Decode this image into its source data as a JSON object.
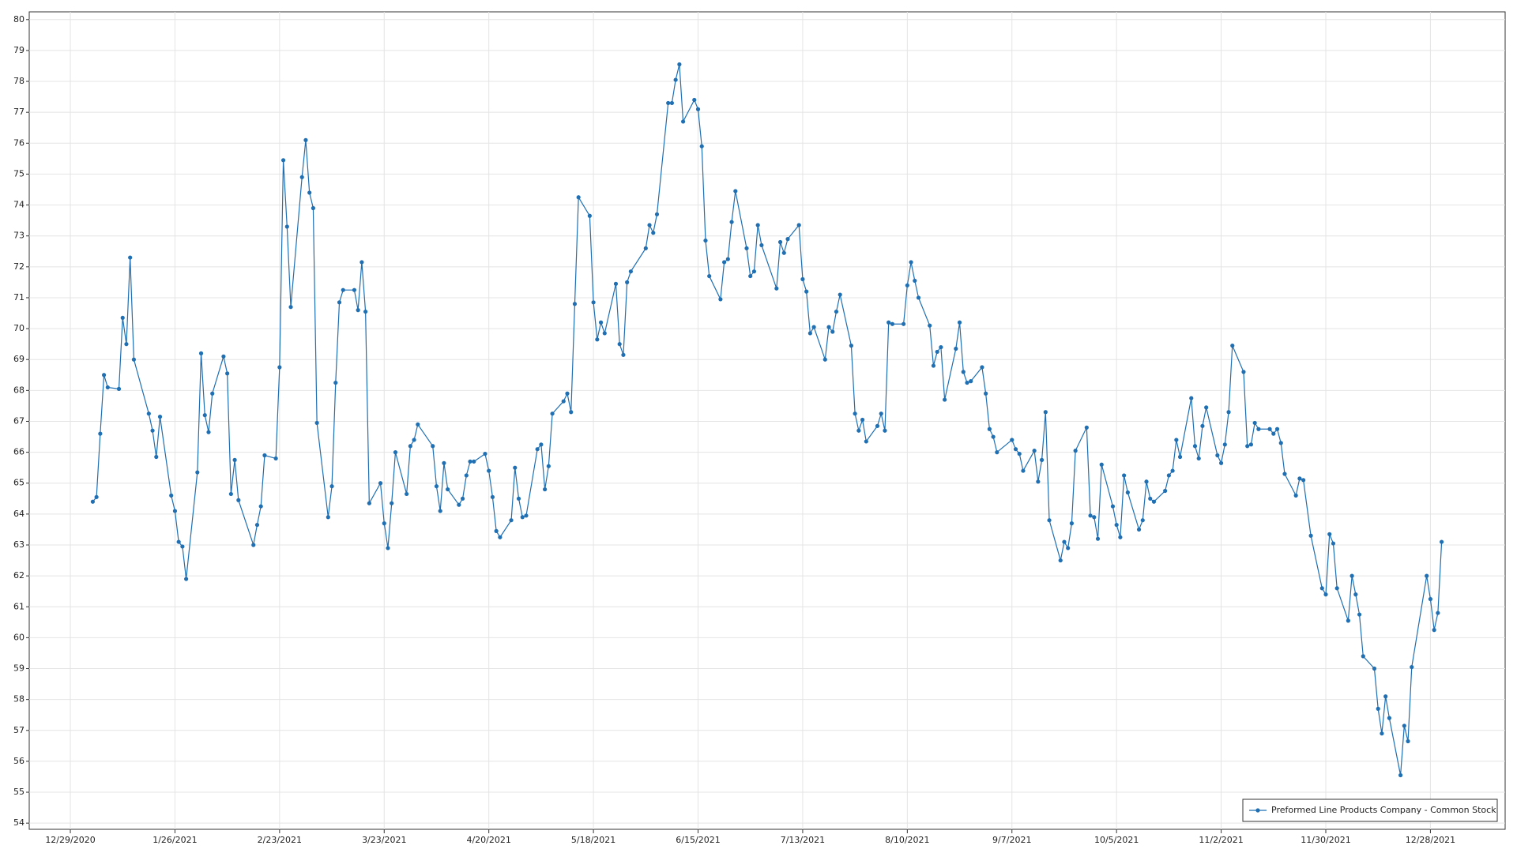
{
  "chart_data": {
    "type": "line",
    "x": [
      "1/4/2021",
      "1/5/2021",
      "1/6/2021",
      "1/7/2021",
      "1/8/2021",
      "1/11/2021",
      "1/12/2021",
      "1/13/2021",
      "1/14/2021",
      "1/15/2021",
      "1/19/2021",
      "1/20/2021",
      "1/21/2021",
      "1/22/2021",
      "1/25/2021",
      "1/26/2021",
      "1/27/2021",
      "1/28/2021",
      "1/29/2021",
      "2/1/2021",
      "2/2/2021",
      "2/3/2021",
      "2/4/2021",
      "2/5/2021",
      "2/8/2021",
      "2/9/2021",
      "2/10/2021",
      "2/11/2021",
      "2/12/2021",
      "2/16/2021",
      "2/17/2021",
      "2/18/2021",
      "2/19/2021",
      "2/22/2021",
      "2/23/2021",
      "2/24/2021",
      "2/25/2021",
      "2/26/2021",
      "3/1/2021",
      "3/2/2021",
      "3/3/2021",
      "3/4/2021",
      "3/5/2021",
      "3/8/2021",
      "3/9/2021",
      "3/10/2021",
      "3/11/2021",
      "3/12/2021",
      "3/15/2021",
      "3/16/2021",
      "3/17/2021",
      "3/18/2021",
      "3/19/2021",
      "3/22/2021",
      "3/23/2021",
      "3/24/2021",
      "3/25/2021",
      "3/26/2021",
      "3/29/2021",
      "3/30/2021",
      "3/31/2021",
      "4/1/2021",
      "4/5/2021",
      "4/6/2021",
      "4/7/2021",
      "4/8/2021",
      "4/9/2021",
      "4/12/2021",
      "4/13/2021",
      "4/14/2021",
      "4/15/2021",
      "4/16/2021",
      "4/19/2021",
      "4/20/2021",
      "4/21/2021",
      "4/22/2021",
      "4/23/2021",
      "4/26/2021",
      "4/27/2021",
      "4/28/2021",
      "4/29/2021",
      "4/30/2021",
      "5/3/2021",
      "5/4/2021",
      "5/5/2021",
      "5/6/2021",
      "5/7/2021",
      "5/10/2021",
      "5/11/2021",
      "5/12/2021",
      "5/13/2021",
      "5/14/2021",
      "5/17/2021",
      "5/18/2021",
      "5/19/2021",
      "5/20/2021",
      "5/21/2021",
      "5/24/2021",
      "5/25/2021",
      "5/26/2021",
      "5/27/2021",
      "5/28/2021",
      "6/1/2021",
      "6/2/2021",
      "6/3/2021",
      "6/4/2021",
      "6/7/2021",
      "6/8/2021",
      "6/9/2021",
      "6/10/2021",
      "6/11/2021",
      "6/14/2021",
      "6/15/2021",
      "6/16/2021",
      "6/17/2021",
      "6/18/2021",
      "6/21/2021",
      "6/22/2021",
      "6/23/2021",
      "6/24/2021",
      "6/25/2021",
      "6/28/2021",
      "6/29/2021",
      "6/30/2021",
      "7/1/2021",
      "7/2/2021",
      "7/6/2021",
      "7/7/2021",
      "7/8/2021",
      "7/9/2021",
      "7/12/2021",
      "7/13/2021",
      "7/14/2021",
      "7/15/2021",
      "7/16/2021",
      "7/19/2021",
      "7/20/2021",
      "7/21/2021",
      "7/22/2021",
      "7/23/2021",
      "7/26/2021",
      "7/27/2021",
      "7/28/2021",
      "7/29/2021",
      "7/30/2021",
      "8/2/2021",
      "8/3/2021",
      "8/4/2021",
      "8/5/2021",
      "8/6/2021",
      "8/9/2021",
      "8/10/2021",
      "8/11/2021",
      "8/12/2021",
      "8/13/2021",
      "8/16/2021",
      "8/17/2021",
      "8/18/2021",
      "8/19/2021",
      "8/20/2021",
      "8/23/2021",
      "8/24/2021",
      "8/25/2021",
      "8/26/2021",
      "8/27/2021",
      "8/30/2021",
      "8/31/2021",
      "9/1/2021",
      "9/2/2021",
      "9/3/2021",
      "9/7/2021",
      "9/8/2021",
      "9/9/2021",
      "9/10/2021",
      "9/13/2021",
      "9/14/2021",
      "9/15/2021",
      "9/16/2021",
      "9/17/2021",
      "9/20/2021",
      "9/21/2021",
      "9/22/2021",
      "9/23/2021",
      "9/24/2021",
      "9/27/2021",
      "9/28/2021",
      "9/29/2021",
      "9/30/2021",
      "10/1/2021",
      "10/4/2021",
      "10/5/2021",
      "10/6/2021",
      "10/7/2021",
      "10/8/2021",
      "10/11/2021",
      "10/12/2021",
      "10/13/2021",
      "10/14/2021",
      "10/15/2021",
      "10/18/2021",
      "10/19/2021",
      "10/20/2021",
      "10/21/2021",
      "10/22/2021",
      "10/25/2021",
      "10/26/2021",
      "10/27/2021",
      "10/28/2021",
      "10/29/2021",
      "11/1/2021",
      "11/2/2021",
      "11/3/2021",
      "11/4/2021",
      "11/5/2021",
      "11/8/2021",
      "11/9/2021",
      "11/10/2021",
      "11/11/2021",
      "11/12/2021",
      "11/15/2021",
      "11/16/2021",
      "11/17/2021",
      "11/18/2021",
      "11/19/2021",
      "11/22/2021",
      "11/23/2021",
      "11/24/2021",
      "11/26/2021",
      "11/29/2021",
      "11/30/2021",
      "12/1/2021",
      "12/2/2021",
      "12/3/2021",
      "12/6/2021",
      "12/7/2021",
      "12/8/2021",
      "12/9/2021",
      "12/10/2021",
      "12/13/2021",
      "12/14/2021",
      "12/15/2021",
      "12/16/2021",
      "12/17/2021",
      "12/20/2021",
      "12/21/2021",
      "12/22/2021",
      "12/23/2021",
      "12/27/2021",
      "12/28/2021",
      "12/29/2021",
      "12/30/2021",
      "12/31/2021"
    ],
    "series": [
      {
        "name": "Preformed Line Products Company - Common Stock",
        "color": "#1f6fb2",
        "values": [
          64.4,
          64.55,
          66.6,
          68.5,
          68.1,
          68.05,
          70.35,
          69.5,
          72.3,
          69.0,
          67.25,
          66.7,
          65.85,
          67.15,
          64.6,
          64.1,
          63.1,
          62.95,
          61.9,
          65.35,
          69.2,
          67.2,
          66.65,
          67.9,
          69.1,
          68.55,
          64.65,
          65.75,
          64.45,
          63.0,
          63.65,
          64.25,
          65.9,
          65.8,
          68.75,
          75.45,
          73.3,
          70.7,
          74.9,
          76.1,
          74.4,
          73.9,
          66.95,
          63.9,
          64.9,
          68.25,
          70.85,
          71.25,
          71.25,
          70.6,
          72.15,
          70.55,
          64.35,
          65.0,
          63.7,
          62.9,
          64.35,
          66.0,
          64.65,
          66.2,
          66.4,
          66.9,
          66.2,
          64.9,
          64.1,
          65.65,
          64.8,
          64.3,
          64.5,
          65.25,
          65.7,
          65.7,
          65.95,
          65.4,
          64.55,
          63.45,
          63.25,
          63.8,
          65.5,
          64.5,
          63.9,
          63.95,
          66.1,
          66.25,
          64.8,
          65.55,
          67.25,
          67.65,
          67.9,
          67.3,
          70.8,
          74.25,
          73.65,
          70.85,
          69.65,
          70.2,
          69.85,
          71.45,
          69.5,
          69.15,
          71.5,
          71.85,
          72.6,
          73.35,
          73.1,
          73.7,
          77.3,
          77.3,
          78.05,
          78.55,
          76.7,
          77.4,
          77.1,
          75.9,
          72.85,
          71.7,
          70.95,
          72.15,
          72.25,
          73.45,
          74.45,
          72.6,
          71.7,
          71.85,
          73.35,
          72.7,
          71.3,
          72.8,
          72.45,
          72.9,
          73.35,
          71.6,
          71.2,
          69.85,
          70.05,
          69.0,
          70.05,
          69.9,
          70.55,
          71.1,
          69.45,
          67.25,
          66.7,
          67.05,
          66.35,
          66.85,
          67.25,
          66.7,
          70.2,
          70.15,
          70.15,
          71.4,
          72.15,
          71.55,
          71.0,
          70.1,
          68.8,
          69.25,
          69.4,
          67.7,
          69.35,
          70.2,
          68.6,
          68.25,
          68.3,
          68.75,
          67.9,
          66.75,
          66.5,
          66.0,
          66.4,
          66.1,
          65.95,
          65.4,
          66.05,
          65.05,
          65.75,
          67.3,
          63.8,
          62.5,
          63.1,
          62.9,
          63.7,
          66.05,
          66.8,
          63.95,
          63.9,
          63.2,
          65.6,
          64.25,
          63.65,
          63.25,
          65.25,
          64.7,
          63.5,
          63.8,
          65.05,
          64.5,
          64.4,
          64.75,
          65.25,
          65.4,
          66.4,
          65.85,
          67.75,
          66.2,
          65.8,
          66.85,
          67.45,
          65.9,
          65.65,
          66.25,
          67.3,
          69.45,
          68.6,
          66.2,
          66.25,
          66.95,
          66.75,
          66.75,
          66.6,
          66.75,
          66.3,
          65.3,
          64.6,
          65.15,
          65.1,
          63.3,
          61.6,
          61.4,
          63.35,
          63.05,
          61.6,
          60.55,
          62.0,
          61.4,
          60.75,
          59.4,
          59.0,
          57.7,
          56.9,
          58.1,
          57.4,
          55.55,
          57.15,
          56.65,
          59.05,
          62.0,
          61.25,
          60.25,
          60.8,
          63.1
        ]
      }
    ],
    "xlim": [
      "12/18/2020",
      "1/17/2022"
    ],
    "xticks": [
      "12/29/2020",
      "1/26/2021",
      "2/23/2021",
      "3/23/2021",
      "4/20/2021",
      "5/18/2021",
      "6/15/2021",
      "7/13/2021",
      "8/10/2021",
      "9/7/2021",
      "10/5/2021",
      "11/2/2021",
      "11/30/2021",
      "12/28/2021"
    ],
    "ylim": [
      53.8,
      80.25
    ],
    "yticks": [
      54,
      55,
      56,
      57,
      58,
      59,
      60,
      61,
      62,
      63,
      64,
      65,
      66,
      67,
      68,
      69,
      70,
      71,
      72,
      73,
      74,
      75,
      76,
      77,
      78,
      79,
      80
    ],
    "grid": true,
    "legend": "bottom-right"
  }
}
